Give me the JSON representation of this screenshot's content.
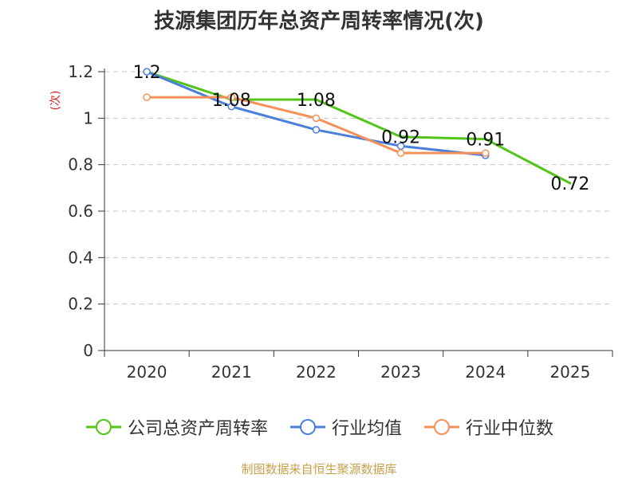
{
  "chart_data": {
    "type": "line",
    "title": "技源集团历年总资产周转率情况(次)",
    "ylabel": "(次)",
    "xlabel": "",
    "ylim": [
      0,
      1.2
    ],
    "yticks": [
      "0",
      "0.2",
      "0.4",
      "0.6",
      "0.8",
      "1",
      "1.2"
    ],
    "categories": [
      "2020",
      "2021",
      "2022",
      "2023",
      "2024",
      "2025"
    ],
    "grid": true,
    "legend_position": "bottom",
    "series": [
      {
        "name": "公司总资产周转率",
        "color": "#52c41a",
        "values": [
          1.2,
          1.08,
          1.08,
          0.92,
          0.91,
          0.72
        ],
        "labels": [
          "1.2",
          "1.08",
          "1.08",
          "0.92",
          "0.91",
          "0.72"
        ],
        "marker": false
      },
      {
        "name": "行业均值",
        "color": "#4a7fdc",
        "values": [
          1.2,
          1.05,
          0.95,
          0.88,
          0.84,
          null
        ],
        "marker": true
      },
      {
        "name": "行业中位数",
        "color": "#f4905a",
        "values": [
          1.09,
          1.09,
          1.0,
          0.85,
          0.85,
          null
        ],
        "marker": true
      }
    ],
    "source": "制图数据来自恒生聚源数据库"
  }
}
